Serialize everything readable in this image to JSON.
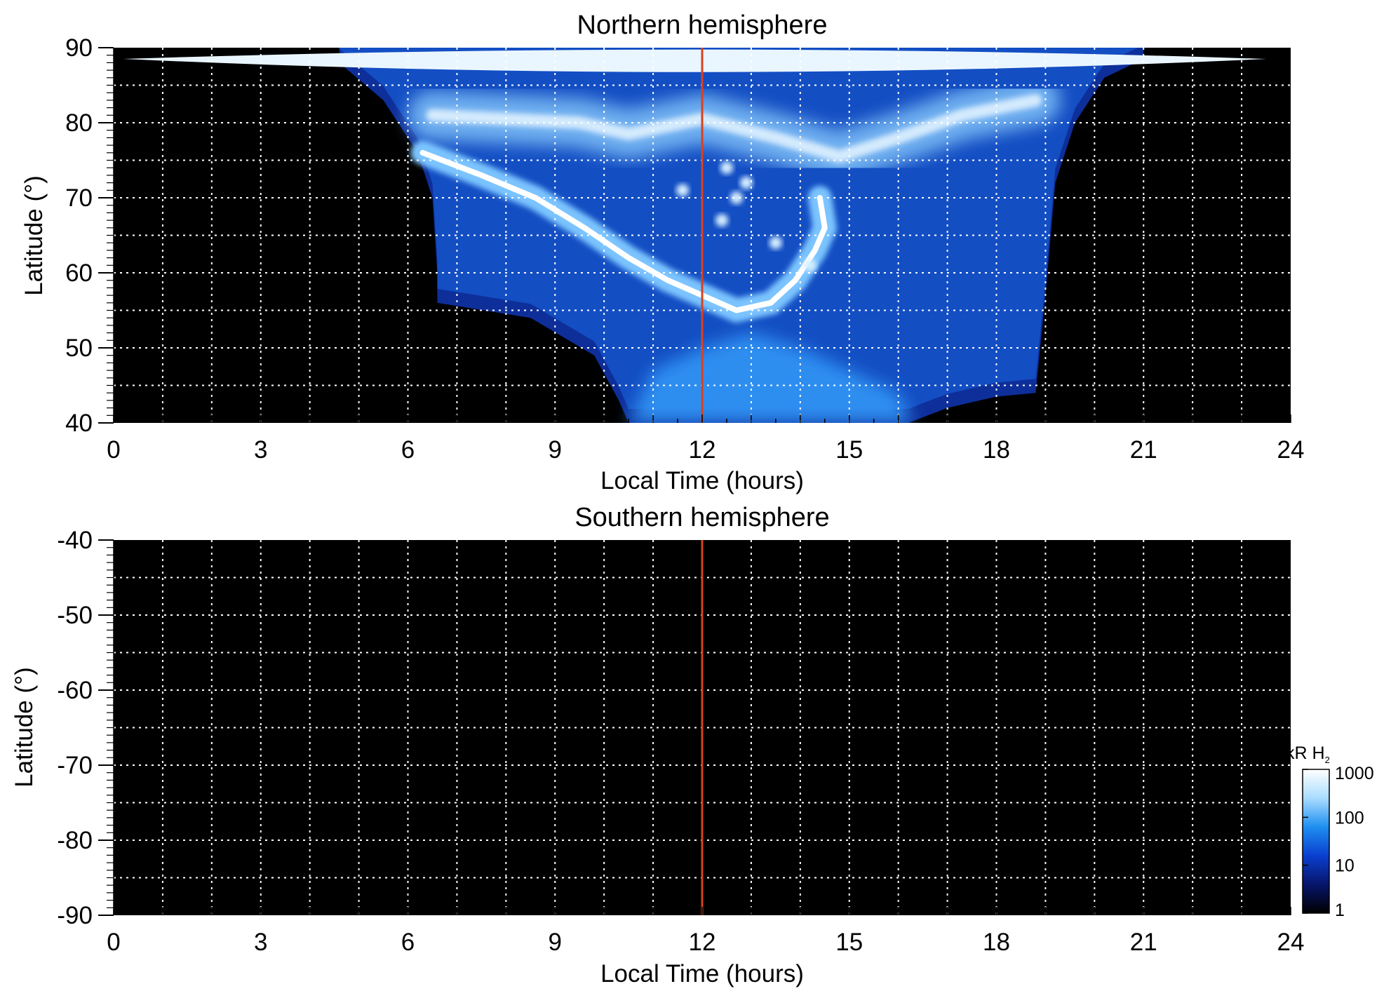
{
  "chart_data": [
    {
      "type": "heatmap",
      "title": "Northern hemisphere",
      "xlabel": "Local Time (hours)",
      "ylabel": "Latitude (°)",
      "xlim": [
        0,
        24
      ],
      "ylim": [
        40,
        90
      ],
      "xticks": [
        0,
        3,
        6,
        9,
        12,
        15,
        18,
        21,
        24
      ],
      "yticks": [
        40,
        50,
        60,
        70,
        80,
        90
      ],
      "grid": true,
      "background": "#000000",
      "reference_line": {
        "x": 12,
        "color": "#d9411e"
      },
      "emission": {
        "coverage_bottom": [
          [
            4.6,
            88
          ],
          [
            5.5,
            83
          ],
          [
            6.2,
            76
          ],
          [
            6.5,
            70
          ],
          [
            6.6,
            60
          ],
          [
            6.6,
            56
          ],
          [
            8.5,
            54
          ],
          [
            9.8,
            49
          ],
          [
            10.3,
            43
          ],
          [
            10.5,
            40
          ],
          [
            16.2,
            40
          ],
          [
            17.0,
            42
          ],
          [
            18.0,
            43.5
          ],
          [
            18.8,
            44
          ],
          [
            19.0,
            57
          ],
          [
            19.2,
            72
          ],
          [
            19.6,
            80
          ],
          [
            20.2,
            86
          ],
          [
            21.0,
            88.5
          ]
        ],
        "polar_cap_band": {
          "x_from": 0.2,
          "x_to": 23.5,
          "lat": 88.5
        },
        "main_oval": [
          [
            6.3,
            76
          ],
          [
            7.5,
            73
          ],
          [
            8.6,
            70
          ],
          [
            9.6,
            66
          ],
          [
            10.5,
            62
          ],
          [
            11.3,
            59
          ],
          [
            12.0,
            57
          ],
          [
            12.7,
            55
          ],
          [
            13.4,
            56
          ],
          [
            13.9,
            59
          ],
          [
            14.3,
            63
          ],
          [
            14.5,
            66
          ],
          [
            14.4,
            70
          ]
        ],
        "upper_arc": [
          [
            6.5,
            81
          ],
          [
            8.0,
            80.5
          ],
          [
            9.5,
            80
          ],
          [
            10.5,
            78.5
          ],
          [
            12.0,
            80.5
          ],
          [
            13.5,
            78
          ],
          [
            14.8,
            75.5
          ],
          [
            16.0,
            78
          ],
          [
            17.3,
            81
          ],
          [
            18.8,
            83
          ]
        ],
        "polar_spots": [
          [
            12.5,
            74
          ],
          [
            12.7,
            70
          ],
          [
            12.9,
            72
          ],
          [
            12.4,
            67
          ],
          [
            11.6,
            71
          ],
          [
            13.5,
            64
          ],
          [
            14.2,
            61
          ]
        ],
        "diffuse_region": [
          [
            10.5,
            40
          ],
          [
            11.0,
            47
          ],
          [
            12.0,
            50
          ],
          [
            13.0,
            52
          ],
          [
            14.0,
            50
          ],
          [
            15.0,
            47
          ],
          [
            16.0,
            44
          ],
          [
            16.3,
            40
          ]
        ]
      }
    },
    {
      "type": "heatmap",
      "title": "Southern hemisphere",
      "xlabel": "Local Time (hours)",
      "ylabel": "Latitude (°)",
      "xlim": [
        0,
        24
      ],
      "ylim": [
        -90,
        -40
      ],
      "xticks": [
        0,
        3,
        6,
        9,
        12,
        15,
        18,
        21,
        24
      ],
      "yticks": [
        -40,
        -50,
        -60,
        -70,
        -80,
        -90
      ],
      "grid": true,
      "background": "#000000",
      "reference_line": {
        "x": 12,
        "color": "#d9411e"
      }
    }
  ],
  "colorbar": {
    "label": "kR H",
    "label_subscript": "2",
    "scale": "log",
    "range": [
      1,
      1000
    ],
    "ticks": [
      "1000",
      "100",
      "10",
      "1"
    ],
    "colors": [
      "#000000",
      "#07156b",
      "#0a3fd0",
      "#1e8ff0",
      "#a9dcff",
      "#ffffff"
    ]
  }
}
